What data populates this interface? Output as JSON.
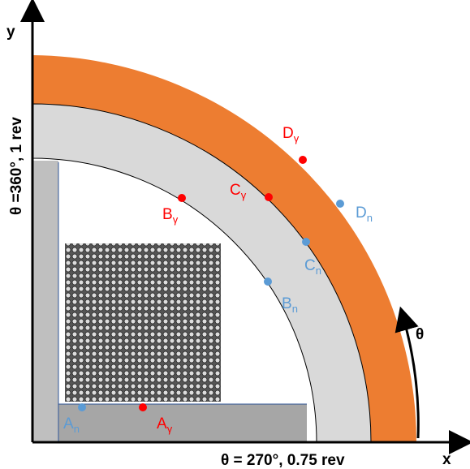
{
  "axes": {
    "x": "x",
    "y": "y",
    "theta": "θ",
    "theta_top": "θ =360°, 1 rev",
    "theta_right": "θ = 270°, 0.75 rev"
  },
  "points": [
    {
      "main": "A",
      "sub": "n"
    },
    {
      "main": "A",
      "sub": "γ"
    },
    {
      "main": "B",
      "sub": "γ"
    },
    {
      "main": "B",
      "sub": "n"
    },
    {
      "main": "C",
      "sub": "γ"
    },
    {
      "main": "C",
      "sub": "n"
    },
    {
      "main": "D",
      "sub": "γ"
    },
    {
      "main": "D",
      "sub": "n"
    }
  ]
}
